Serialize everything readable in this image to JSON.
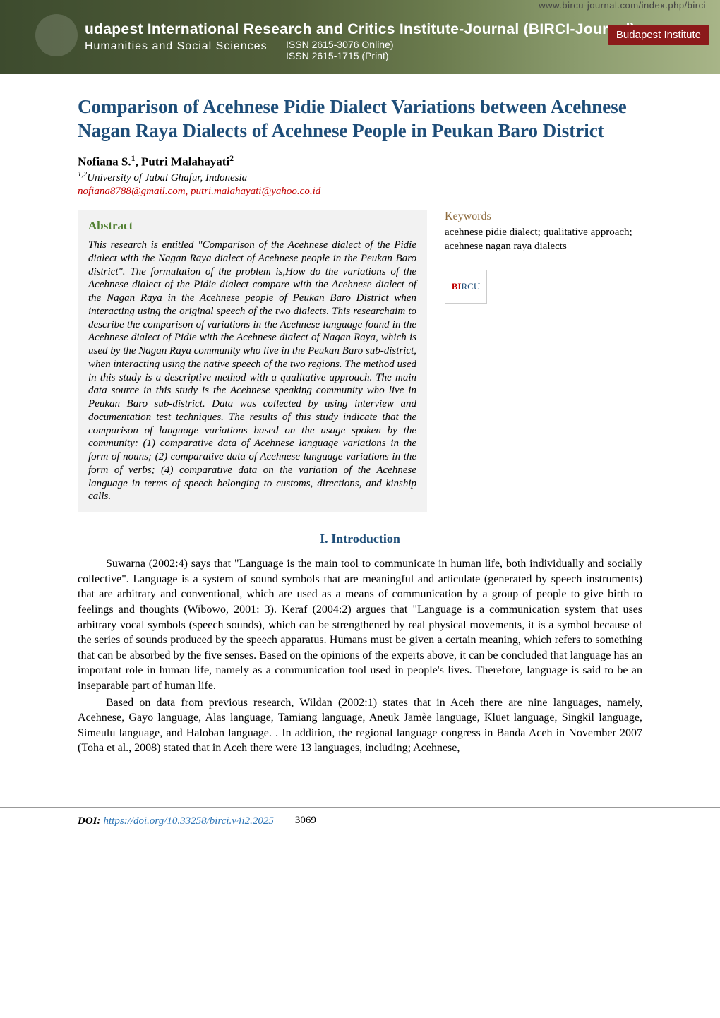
{
  "banner": {
    "url": "www.bircu-journal.com/index.php/birci",
    "title": "udapest International Research and Critics Institute-Journal (BIRCI-Journal)",
    "subtitle": "Humanities and Social Sciences",
    "issn_online": "ISSN 2615-3076 Online)",
    "issn_print": "ISSN 2615-1715   (Print)",
    "institute": "Budapest Institute"
  },
  "paper": {
    "title": "Comparison of Acehnese Pidie Dialect Variations between Acehnese Nagan Raya Dialects of Acehnese People in Peukan Baro District",
    "authors_html": "Nofiana S.<sup>1</sup>, Putri Malahayati<sup>2</sup>",
    "authors": "Nofiana S.1, Putri Malahayati2",
    "affiliation": "1,2University of Jabal Ghafur, Indonesia",
    "emails": "nofiana8788@gmail.com, putri.malahayati@yahoo.co.id"
  },
  "abstract": {
    "heading": "Abstract",
    "text": "This research is entitled \"Comparison of the Acehnese dialect of the Pidie dialect with the Nagan Raya dialect of Acehnese people in the Peukan Baro district\". The formulation of the problem is,How do the variations of the Acehnese dialect of the Pidie dialect compare with the Acehnese dialect of the Nagan Raya in the Acehnese people of Peukan Baro District when interacting using the original speech of the two dialects. This researchaim to describe the comparison of variations in the Acehnese language found in the Acehnese dialect of Pidie with the Acehnese dialect of Nagan Raya, which is used by the Nagan Raya community who live in the Peukan Baro sub-district, when interacting using the native speech of the two regions. The method used in this study is a descriptive method with a qualitative approach. The main data source in this study is the Acehnese speaking community who live in Peukan Baro sub-district. Data was collected by using interview and documentation test techniques. The results of this study indicate that the comparison of language variations based on the usage spoken by the community: (1) comparative data of Acehnese language variations in the form of nouns; (2) comparative data of Acehnese language variations in the form of verbs; (4) comparative data on the variation of the Acehnese language in terms of speech belonging to customs, directions, and kinship calls."
  },
  "keywords": {
    "heading": "Keywords",
    "text": "acehnese pidie dialect; qualitative approach; acehnese nagan raya dialects"
  },
  "logo": {
    "text_prefix": "BI",
    "text_suffix": "RCU"
  },
  "sections": {
    "intro_heading": "I. Introduction",
    "intro_p1": "Suwarna (2002:4) says that \"Language is the main tool to communicate in human life, both individually and socially collective\". Language is a system of sound symbols that are meaningful and articulate (generated by speech instruments) that are arbitrary and conventional, which are used as a means of communication by a group of people to give birth to feelings and thoughts (Wibowo, 2001: 3). Keraf (2004:2) argues that \"Language is a communication system that uses arbitrary vocal symbols (speech sounds), which can be strengthened by real physical movements, it is a symbol because of the series of sounds produced by the speech apparatus. Humans must be given a certain meaning, which refers to something that can be absorbed by the five senses. Based on the opinions of the experts above, it can be concluded that language has an important role in human life, namely as a communication tool used in people's lives. Therefore, language is said to be an inseparable part of human life.",
    "intro_p2": "Based on data from previous research, Wildan (2002:1) states that in Aceh there are nine languages, namely, Acehnese, Gayo language, Alas language, Tamiang language, Aneuk Jamèe language, Kluet language, Singkil language, Simeulu language, and Haloban language. . In addition, the regional language congress in Banda Aceh in November 2007 (Toha et al., 2008) stated that in Aceh there were 13 languages, including; Acehnese,"
  },
  "footer": {
    "doi_label": "DOI:",
    "doi_url": "https://doi.org/10.33258/birci.v4i2.2025",
    "page": "3069"
  },
  "colors": {
    "title": "#1f4e79",
    "abstract_heading": "#548235",
    "keywords_heading": "#8e6b3d",
    "email": "#c00000",
    "doi_link": "#2e75b6",
    "abstract_bg": "#f2f2f2",
    "banner_bg_start": "#3d4b2e",
    "banner_bg_end": "#a8b588",
    "institute_bg": "#8b1a1a"
  }
}
